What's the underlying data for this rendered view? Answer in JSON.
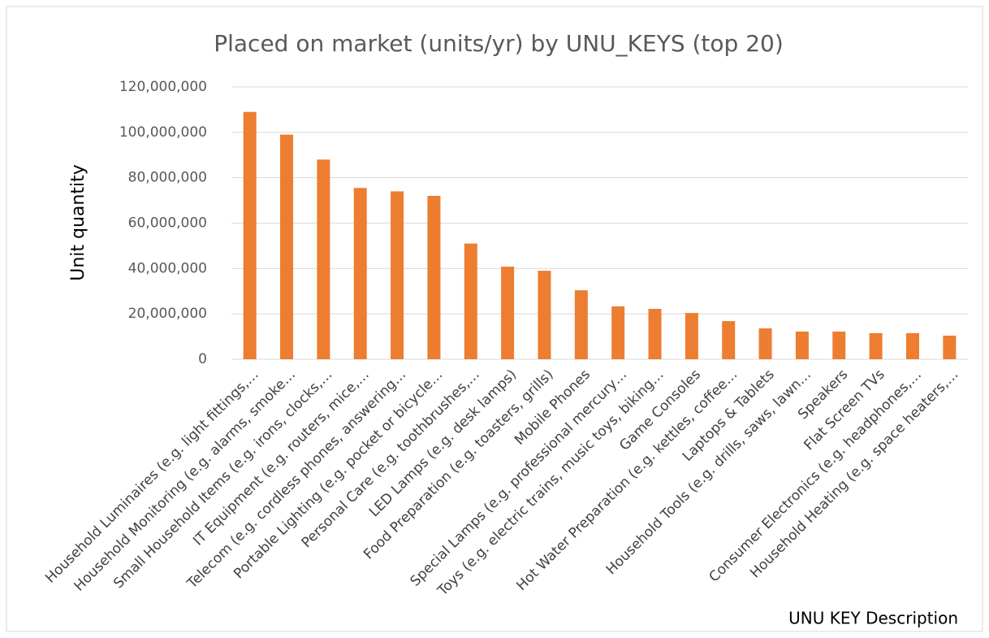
{
  "chart_data": {
    "type": "bar",
    "title": "Placed on market (units/yr) by UNU_KEYS (top 20)",
    "x_label": "UNU KEY Description",
    "y_label": "Unit quantity",
    "categories": [
      "Household Luminaires (e.g. light fittings,…",
      "Household Monitoring (e.g. alarms, smoke…",
      "Small Household Items (e.g. irons, clocks,…",
      "IT Equipment (e.g. routers, mice,…",
      "Telecom (e.g. cordless phones, answering…",
      "Portable Lighting (e.g. pocket or bicycle…",
      "Personal Care (e.g. toothbrushes,…",
      "LED Lamps (e.g. desk lamps)",
      "Food Preparation (e.g. toasters, grills)",
      "Mobile Phones",
      "Special Lamps (e.g. professional mercury…",
      "Toys (e.g. electric trains, music toys, biking…",
      "Game Consoles",
      "Hot Water Preparation (e.g. kettles, coffee…",
      "Laptops & Tablets",
      "Household Tools (e.g. drills, saws, lawn…",
      "Speakers",
      "Flat Screen TVs",
      "Consumer Electronics (e.g. headphones,…",
      "Household Heating (e.g. space heaters,…"
    ],
    "values": [
      109000000,
      99000000,
      88000000,
      75500000,
      74000000,
      72000000,
      51000000,
      40800000,
      39000000,
      30400000,
      23300000,
      22200000,
      20400000,
      16800000,
      13600000,
      12200000,
      12200000,
      11500000,
      11500000,
      10400000
    ],
    "color": "#ed7d31",
    "ylim": [
      0,
      120000000
    ],
    "yticks": [
      0,
      {
        "value": 20000000,
        "label": "20,000,000"
      },
      {
        "value": 40000000,
        "label": "40,000,000"
      },
      {
        "value": 60000000,
        "label": "60,000,000"
      },
      {
        "value": 80000000,
        "label": "80,000,000"
      },
      {
        "value": 100000000,
        "label": "100,000,000"
      },
      {
        "value": 120000000,
        "label": "120,000,000"
      }
    ],
    "grid": true
  }
}
